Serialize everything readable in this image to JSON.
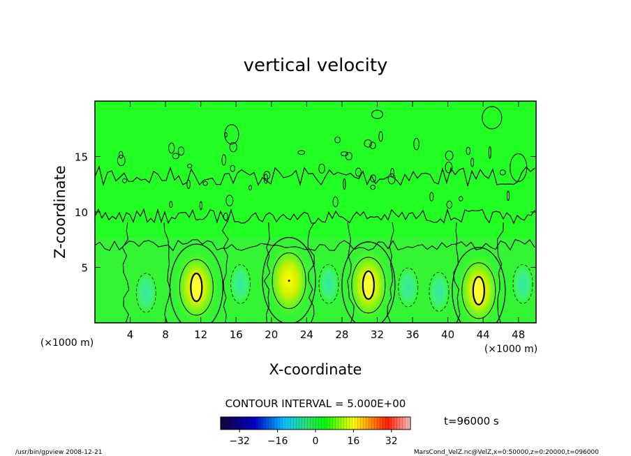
{
  "chart_data": {
    "type": "heatmap",
    "title": "vertical velocity",
    "xlabel": "X-coordinate",
    "ylabel": "Z-coordinate",
    "x_unit": "(×1000 m)",
    "y_unit": "(×1000 m)",
    "xlim": [
      0,
      50
    ],
    "ylim": [
      0,
      20
    ],
    "x_ticks": [
      4,
      8,
      12,
      16,
      20,
      24,
      28,
      32,
      36,
      40,
      44,
      48
    ],
    "y_ticks": [
      5,
      10,
      15
    ],
    "contour_interval_label": "CONTOUR INTERVAL = 5.000E+00",
    "contour_interval": 5,
    "time_label": "t=96000 s",
    "colorbar": {
      "range": [
        -40,
        40
      ],
      "ticks": [
        -32,
        -16,
        0,
        16,
        32
      ],
      "colormap": [
        "#1a0033",
        "#0000cc",
        "#00c8ff",
        "#2ee07a",
        "#00ff00",
        "#ffff00",
        "#ff2000",
        "#ffc0c0"
      ]
    },
    "background_color": "#22ff22",
    "features": [
      {
        "kind": "updraft",
        "x": 11.5,
        "z": 3.2,
        "peak": 15
      },
      {
        "kind": "updraft",
        "x": 22.0,
        "z": 3.8,
        "peak": 10
      },
      {
        "kind": "updraft",
        "x": 31.0,
        "z": 3.4,
        "peak": 15
      },
      {
        "kind": "updraft",
        "x": 43.5,
        "z": 2.9,
        "peak": 15
      },
      {
        "kind": "downdraft",
        "x": 5.8,
        "z": 2.7,
        "peak": -5
      },
      {
        "kind": "downdraft",
        "x": 16.5,
        "z": 3.5,
        "peak": -5
      },
      {
        "kind": "downdraft",
        "x": 26.5,
        "z": 3.5,
        "peak": -5
      },
      {
        "kind": "downdraft",
        "x": 35.5,
        "z": 3.2,
        "peak": -5
      },
      {
        "kind": "downdraft",
        "x": 39.0,
        "z": 2.8,
        "peak": -5
      },
      {
        "kind": "downdraft",
        "x": 48.5,
        "z": 3.5,
        "peak": -5
      }
    ],
    "grid": false
  },
  "footer": {
    "left": "/usr/bin/gpview   2008-12-21",
    "right": "MarsCond_VelZ.nc@VelZ,x=0:50000,z=0:20000,t=096000"
  }
}
